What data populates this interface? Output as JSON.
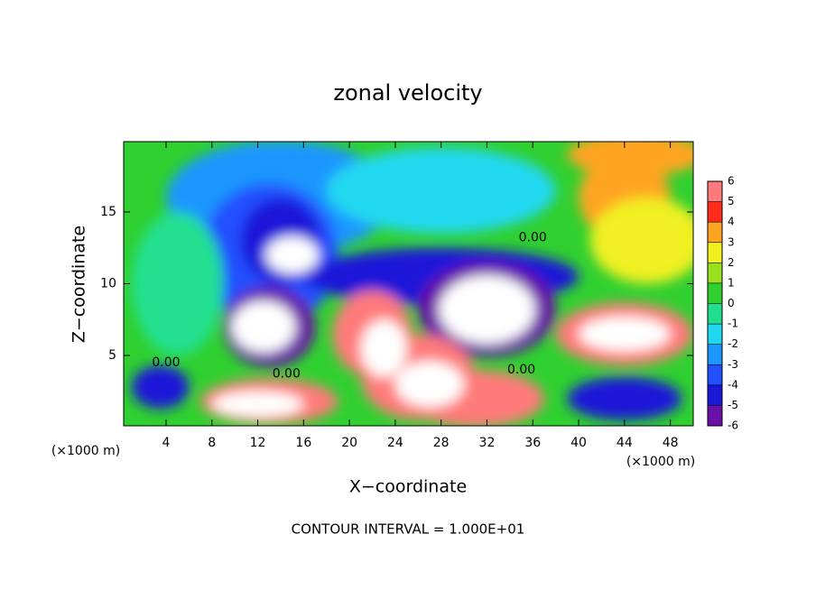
{
  "chart_data": {
    "type": "contour",
    "title": "zonal velocity",
    "xlabel": "X−coordinate",
    "ylabel": "Z−coordinate",
    "x_unit": "(×1000 m)",
    "y_unit": "(×1000 m)",
    "footnote": "CONTOUR INTERVAL = 1.000E+01",
    "xlim": [
      0.3,
      50
    ],
    "ylim": [
      0.1,
      19.9
    ],
    "xticks": [
      4,
      8,
      12,
      16,
      20,
      24,
      28,
      32,
      36,
      40,
      44,
      48
    ],
    "yticks": [
      5,
      10,
      15
    ],
    "background_value": 0.5,
    "colorbar": {
      "levels": [
        -6,
        -5,
        -4,
        -3,
        -2,
        -1,
        0,
        1,
        2,
        3,
        4,
        5,
        6
      ],
      "colors": [
        "#6a10a8",
        "#1c18d8",
        "#2050ff",
        "#1e96ff",
        "#20d8f0",
        "#20e090",
        "#30d030",
        "#98e020",
        "#f0f020",
        "#ffa420",
        "#ff2a1a",
        "#ff7a7a"
      ]
    },
    "contour_labels": [
      {
        "x": 36,
        "y": 13.2,
        "label": "0.00"
      },
      {
        "x": 4,
        "y": 4.5,
        "label": "0.00"
      },
      {
        "x": 14.5,
        "y": 3.7,
        "label": "0.00"
      },
      {
        "x": 35,
        "y": 4.0,
        "label": "0.00"
      }
    ],
    "blobs": [
      {
        "x": 14,
        "y": 16,
        "rx": 10,
        "ry": 4,
        "value": -2.5
      },
      {
        "x": 28,
        "y": 16.5,
        "rx": 10,
        "ry": 3,
        "value": -1.5
      },
      {
        "x": 13,
        "y": 12,
        "rx": 6,
        "ry": 5,
        "value": -3.5
      },
      {
        "x": 14,
        "y": 13,
        "rx": 3.5,
        "ry": 3,
        "value": -5
      },
      {
        "x": 28,
        "y": 10.5,
        "rx": 12,
        "ry": 2,
        "value": -4.2
      },
      {
        "x": 13,
        "y": 7,
        "rx": 4,
        "ry": 2.8,
        "value": -5.5
      },
      {
        "x": 12.5,
        "y": 7,
        "rx": 2.8,
        "ry": 1.8,
        "value": 7
      },
      {
        "x": 15,
        "y": 12,
        "rx": 2.3,
        "ry": 1.3,
        "value": 7
      },
      {
        "x": 32,
        "y": 8.2,
        "rx": 6,
        "ry": 3.3,
        "value": -5.2
      },
      {
        "x": 32,
        "y": 8.2,
        "rx": 4.2,
        "ry": 2.4,
        "value": 7
      },
      {
        "x": 22,
        "y": 6.5,
        "rx": 3.5,
        "ry": 3,
        "value": 5
      },
      {
        "x": 26,
        "y": 3.5,
        "rx": 5,
        "ry": 3,
        "value": 5
      },
      {
        "x": 31,
        "y": 2,
        "rx": 6,
        "ry": 2,
        "value": 5
      },
      {
        "x": 23,
        "y": 5.5,
        "rx": 2,
        "ry": 2,
        "value": 7
      },
      {
        "x": 27,
        "y": 3,
        "rx": 3,
        "ry": 1.6,
        "value": 7
      },
      {
        "x": 13,
        "y": 1.8,
        "rx": 6,
        "ry": 1.6,
        "value": 5
      },
      {
        "x": 12,
        "y": 1.6,
        "rx": 4,
        "ry": 0.9,
        "value": 7
      },
      {
        "x": 44,
        "y": 6.5,
        "rx": 6,
        "ry": 2.2,
        "value": 5
      },
      {
        "x": 44,
        "y": 6.5,
        "rx": 4,
        "ry": 1.2,
        "value": 7
      },
      {
        "x": 44,
        "y": 2,
        "rx": 5,
        "ry": 1.5,
        "value": -4.5
      },
      {
        "x": 3.5,
        "y": 2.8,
        "rx": 2.5,
        "ry": 1.5,
        "value": -4.5
      },
      {
        "x": 44,
        "y": 16,
        "rx": 4,
        "ry": 3,
        "value": 3.2
      },
      {
        "x": 46,
        "y": 13,
        "rx": 5,
        "ry": 3,
        "value": 2.3
      },
      {
        "x": 45,
        "y": 19,
        "rx": 6,
        "ry": 1.5,
        "value": 3.5
      },
      {
        "x": 5,
        "y": 10,
        "rx": 4,
        "ry": 5,
        "value": -0.5
      }
    ]
  }
}
